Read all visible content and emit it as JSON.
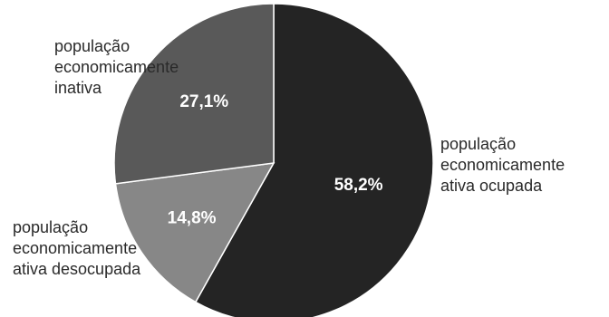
{
  "chart_data": {
    "type": "pie",
    "slices": [
      {
        "lines": [
          "população",
          "economicamente",
          "ativa ocupada"
        ],
        "value": 58.2,
        "value_label": "58,2%",
        "color": "#242424"
      },
      {
        "lines": [
          "população",
          "economicamente",
          "ativa desocupada"
        ],
        "value": 14.8,
        "value_label": "14,8%",
        "color": "#878787"
      },
      {
        "lines": [
          "população",
          "economicamente",
          "inativa"
        ],
        "value": 27.1,
        "value_label": "27,1%",
        "color": "#595959"
      }
    ],
    "start": "12 o'clock",
    "direction": "clockwise"
  }
}
